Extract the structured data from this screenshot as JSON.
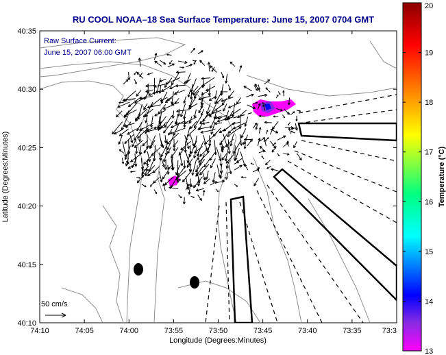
{
  "title": "RU COOL   NOAA–18  Sea Surface Temperature:  June 15, 2007 0704 GMT",
  "annotation": {
    "line1": "Raw Surface Current:",
    "line2": "June 15, 2007 06:00 GMT"
  },
  "scale_label": "50 cm/s",
  "axes": {
    "xlabel": "Longitude (Degrees:Minutes)",
    "ylabel": "Latitude (Degrees:Minutes)",
    "x_ticks": [
      "74:10",
      "74:05",
      "74:00",
      "73:55",
      "73:50",
      "73:45",
      "73:40",
      "73:35",
      "73:3"
    ],
    "y_ticks": [
      "40:35",
      "40:30",
      "40:25",
      "40:20",
      "40:15",
      "40:10"
    ]
  },
  "colorbar": {
    "label": "Temperature (°C)",
    "min": 13,
    "max": 20,
    "ticks": [
      "20",
      "19",
      "18",
      "17",
      "16",
      "15",
      "14",
      "13"
    ],
    "colors": [
      "#ff00ff",
      "#8a2be2",
      "#0000ff",
      "#00ffff",
      "#00ff80",
      "#ffff00",
      "#ff8000",
      "#ff0000",
      "#8b0000"
    ]
  },
  "map": {
    "land_color": "#ffffff",
    "contour_color": "#8c8c8c",
    "vector_color": "#000000",
    "sst_patches": [
      {
        "name": "north-patch",
        "lon": "73:45",
        "lat": "40:28",
        "temperature_c": [
          13.0,
          14.0
        ]
      },
      {
        "name": "south-patch",
        "lon": "73:57",
        "lat": "40:22",
        "temperature_c": [
          13.0,
          13.3
        ]
      }
    ]
  },
  "chart_data": {
    "type": "heatmap",
    "title": "RU COOL   NOAA–18  Sea Surface Temperature:  June 15, 2007 0704 GMT",
    "xlabel": "Longitude (Degrees:Minutes)",
    "ylabel": "Latitude (Degrees:Minutes)",
    "xlim": [
      "74:10",
      "73:30"
    ],
    "ylim": [
      "40:10",
      "40:35"
    ],
    "value_label": "Temperature (°C)",
    "value_range": [
      13,
      20
    ],
    "current_vectors": "dense field of surface current arrows concentrated near 73:55–74:00 W, 40:22–40:30 N"
  }
}
